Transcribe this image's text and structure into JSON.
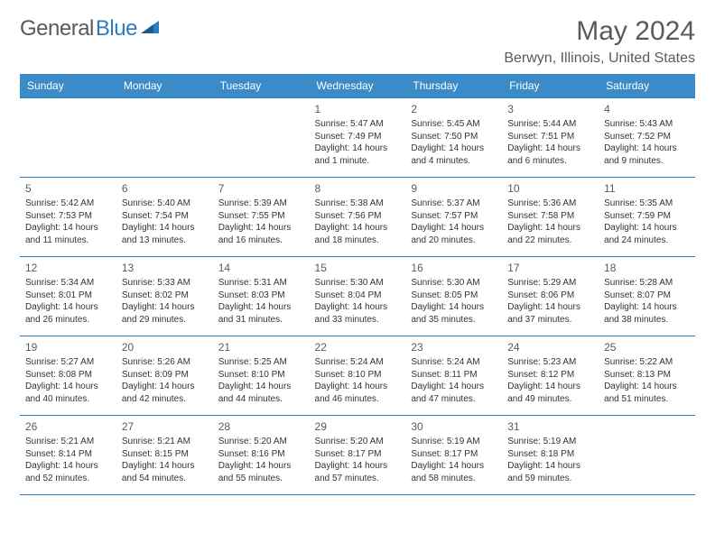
{
  "brand": {
    "part1": "General",
    "part2": "Blue"
  },
  "title": "May 2024",
  "location": "Berwyn, Illinois, United States",
  "colors": {
    "header_bg": "#3b8bc9",
    "header_text": "#ffffff",
    "border": "#2b7bbf",
    "text_gray": "#5a5a5a",
    "body_text": "#333333",
    "brand_blue": "#2b7bbf",
    "background": "#ffffff"
  },
  "typography": {
    "title_fontsize": 30,
    "location_fontsize": 16,
    "dayheader_fontsize": 12,
    "daynum_fontsize": 12,
    "cell_fontsize": 10
  },
  "weekdays": [
    "Sunday",
    "Monday",
    "Tuesday",
    "Wednesday",
    "Thursday",
    "Friday",
    "Saturday"
  ],
  "weeks": [
    [
      null,
      null,
      null,
      {
        "n": "1",
        "sr": "Sunrise: 5:47 AM",
        "ss": "Sunset: 7:49 PM",
        "dl": "Daylight: 14 hours and 1 minute."
      },
      {
        "n": "2",
        "sr": "Sunrise: 5:45 AM",
        "ss": "Sunset: 7:50 PM",
        "dl": "Daylight: 14 hours and 4 minutes."
      },
      {
        "n": "3",
        "sr": "Sunrise: 5:44 AM",
        "ss": "Sunset: 7:51 PM",
        "dl": "Daylight: 14 hours and 6 minutes."
      },
      {
        "n": "4",
        "sr": "Sunrise: 5:43 AM",
        "ss": "Sunset: 7:52 PM",
        "dl": "Daylight: 14 hours and 9 minutes."
      }
    ],
    [
      {
        "n": "5",
        "sr": "Sunrise: 5:42 AM",
        "ss": "Sunset: 7:53 PM",
        "dl": "Daylight: 14 hours and 11 minutes."
      },
      {
        "n": "6",
        "sr": "Sunrise: 5:40 AM",
        "ss": "Sunset: 7:54 PM",
        "dl": "Daylight: 14 hours and 13 minutes."
      },
      {
        "n": "7",
        "sr": "Sunrise: 5:39 AM",
        "ss": "Sunset: 7:55 PM",
        "dl": "Daylight: 14 hours and 16 minutes."
      },
      {
        "n": "8",
        "sr": "Sunrise: 5:38 AM",
        "ss": "Sunset: 7:56 PM",
        "dl": "Daylight: 14 hours and 18 minutes."
      },
      {
        "n": "9",
        "sr": "Sunrise: 5:37 AM",
        "ss": "Sunset: 7:57 PM",
        "dl": "Daylight: 14 hours and 20 minutes."
      },
      {
        "n": "10",
        "sr": "Sunrise: 5:36 AM",
        "ss": "Sunset: 7:58 PM",
        "dl": "Daylight: 14 hours and 22 minutes."
      },
      {
        "n": "11",
        "sr": "Sunrise: 5:35 AM",
        "ss": "Sunset: 7:59 PM",
        "dl": "Daylight: 14 hours and 24 minutes."
      }
    ],
    [
      {
        "n": "12",
        "sr": "Sunrise: 5:34 AM",
        "ss": "Sunset: 8:01 PM",
        "dl": "Daylight: 14 hours and 26 minutes."
      },
      {
        "n": "13",
        "sr": "Sunrise: 5:33 AM",
        "ss": "Sunset: 8:02 PM",
        "dl": "Daylight: 14 hours and 29 minutes."
      },
      {
        "n": "14",
        "sr": "Sunrise: 5:31 AM",
        "ss": "Sunset: 8:03 PM",
        "dl": "Daylight: 14 hours and 31 minutes."
      },
      {
        "n": "15",
        "sr": "Sunrise: 5:30 AM",
        "ss": "Sunset: 8:04 PM",
        "dl": "Daylight: 14 hours and 33 minutes."
      },
      {
        "n": "16",
        "sr": "Sunrise: 5:30 AM",
        "ss": "Sunset: 8:05 PM",
        "dl": "Daylight: 14 hours and 35 minutes."
      },
      {
        "n": "17",
        "sr": "Sunrise: 5:29 AM",
        "ss": "Sunset: 8:06 PM",
        "dl": "Daylight: 14 hours and 37 minutes."
      },
      {
        "n": "18",
        "sr": "Sunrise: 5:28 AM",
        "ss": "Sunset: 8:07 PM",
        "dl": "Daylight: 14 hours and 38 minutes."
      }
    ],
    [
      {
        "n": "19",
        "sr": "Sunrise: 5:27 AM",
        "ss": "Sunset: 8:08 PM",
        "dl": "Daylight: 14 hours and 40 minutes."
      },
      {
        "n": "20",
        "sr": "Sunrise: 5:26 AM",
        "ss": "Sunset: 8:09 PM",
        "dl": "Daylight: 14 hours and 42 minutes."
      },
      {
        "n": "21",
        "sr": "Sunrise: 5:25 AM",
        "ss": "Sunset: 8:10 PM",
        "dl": "Daylight: 14 hours and 44 minutes."
      },
      {
        "n": "22",
        "sr": "Sunrise: 5:24 AM",
        "ss": "Sunset: 8:10 PM",
        "dl": "Daylight: 14 hours and 46 minutes."
      },
      {
        "n": "23",
        "sr": "Sunrise: 5:24 AM",
        "ss": "Sunset: 8:11 PM",
        "dl": "Daylight: 14 hours and 47 minutes."
      },
      {
        "n": "24",
        "sr": "Sunrise: 5:23 AM",
        "ss": "Sunset: 8:12 PM",
        "dl": "Daylight: 14 hours and 49 minutes."
      },
      {
        "n": "25",
        "sr": "Sunrise: 5:22 AM",
        "ss": "Sunset: 8:13 PM",
        "dl": "Daylight: 14 hours and 51 minutes."
      }
    ],
    [
      {
        "n": "26",
        "sr": "Sunrise: 5:21 AM",
        "ss": "Sunset: 8:14 PM",
        "dl": "Daylight: 14 hours and 52 minutes."
      },
      {
        "n": "27",
        "sr": "Sunrise: 5:21 AM",
        "ss": "Sunset: 8:15 PM",
        "dl": "Daylight: 14 hours and 54 minutes."
      },
      {
        "n": "28",
        "sr": "Sunrise: 5:20 AM",
        "ss": "Sunset: 8:16 PM",
        "dl": "Daylight: 14 hours and 55 minutes."
      },
      {
        "n": "29",
        "sr": "Sunrise: 5:20 AM",
        "ss": "Sunset: 8:17 PM",
        "dl": "Daylight: 14 hours and 57 minutes."
      },
      {
        "n": "30",
        "sr": "Sunrise: 5:19 AM",
        "ss": "Sunset: 8:17 PM",
        "dl": "Daylight: 14 hours and 58 minutes."
      },
      {
        "n": "31",
        "sr": "Sunrise: 5:19 AM",
        "ss": "Sunset: 8:18 PM",
        "dl": "Daylight: 14 hours and 59 minutes."
      },
      null
    ]
  ]
}
